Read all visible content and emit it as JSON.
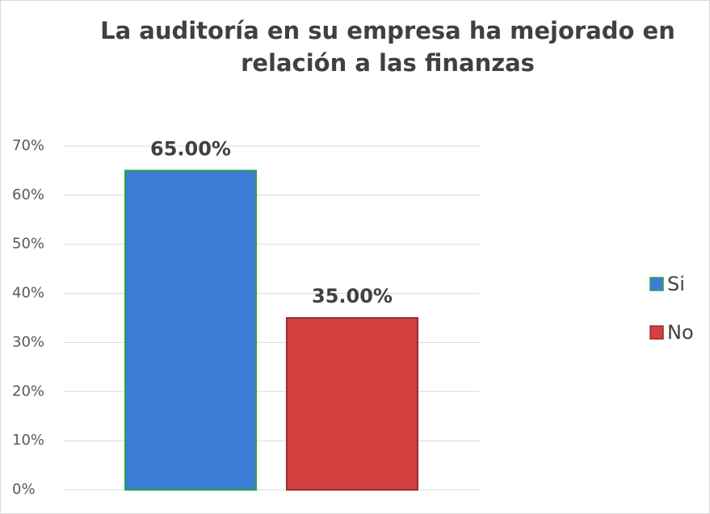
{
  "chart_data": {
    "type": "bar",
    "title": "La auditoría en su empresa ha mejorado en relación a las finanzas",
    "categories": [
      null
    ],
    "series": [
      {
        "name": "Si",
        "color": "#3b7dd6",
        "values": [
          65
        ],
        "value_labels": [
          "65.00%"
        ]
      },
      {
        "name": "No",
        "color": "#d43f3f",
        "values": [
          35
        ],
        "value_labels": [
          "35.00%"
        ]
      }
    ],
    "ylim": [
      0,
      70
    ],
    "yticks": [
      {
        "value": 0,
        "label": "0%"
      },
      {
        "value": 10,
        "label": "10%"
      },
      {
        "value": 20,
        "label": "20%"
      },
      {
        "value": 30,
        "label": "30%"
      },
      {
        "value": 40,
        "label": "40%"
      },
      {
        "value": 50,
        "label": "50%"
      },
      {
        "value": 60,
        "label": "60%"
      },
      {
        "value": 70,
        "label": "70%"
      }
    ],
    "grid": true,
    "legend": "right"
  }
}
